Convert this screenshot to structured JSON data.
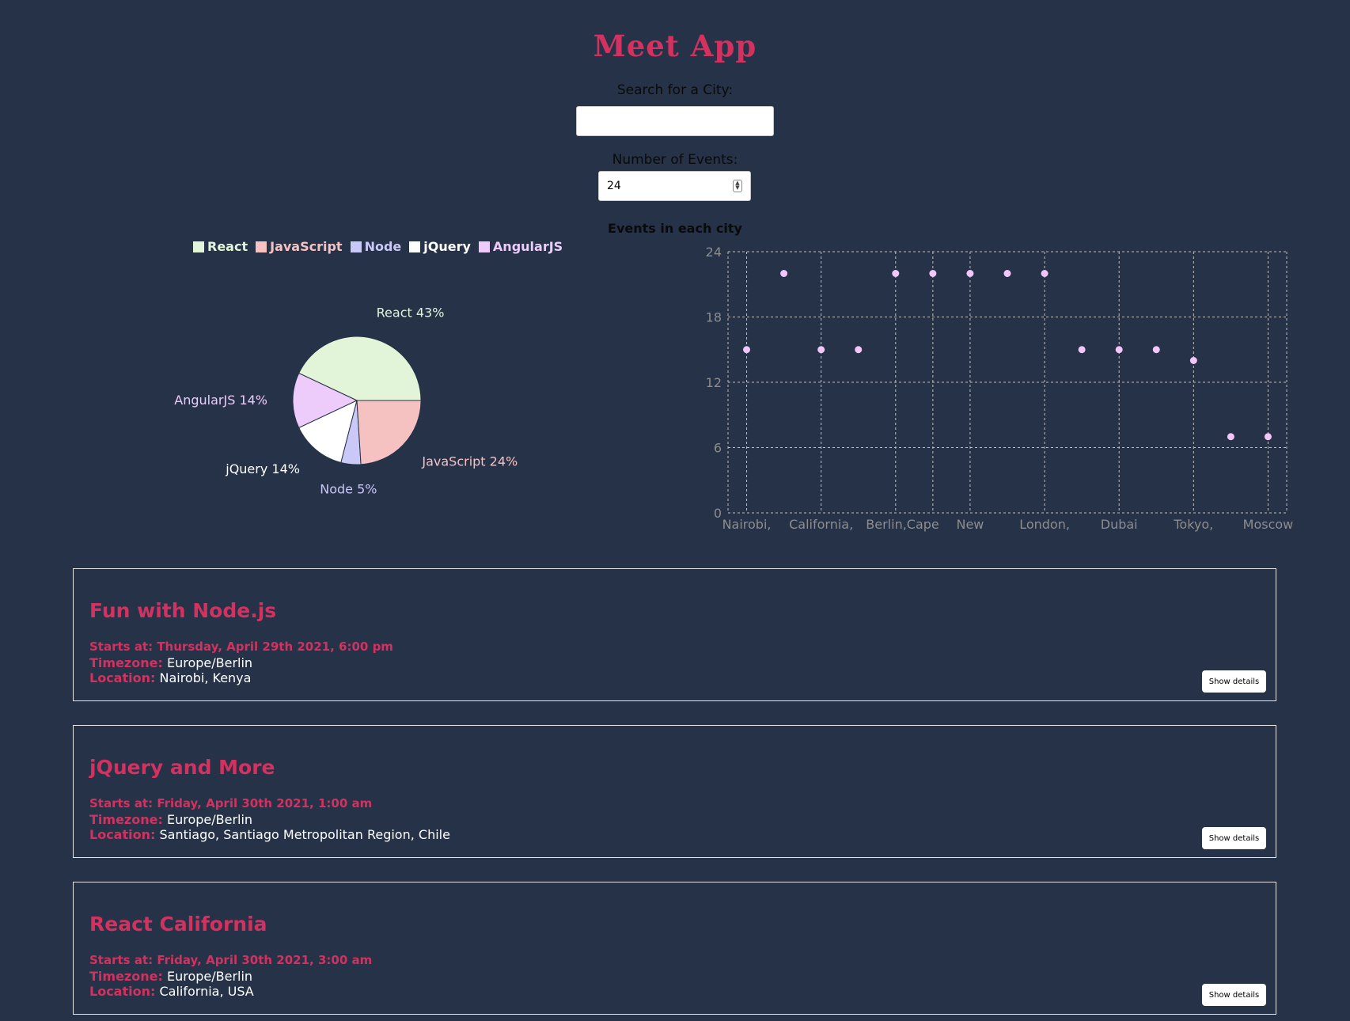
{
  "app": {
    "title": "Meet App"
  },
  "search": {
    "label": "Search for a City:",
    "value": ""
  },
  "number": {
    "label": "Number of Events:",
    "value": "24"
  },
  "chart_title": "Events in each city",
  "colors": {
    "accent": "#d3315f",
    "background": "#253247",
    "scatter_point": "#f3c6fb"
  },
  "chart_data": [
    {
      "type": "pie",
      "legend_position": "top",
      "slices": [
        {
          "name": "React",
          "value": 43,
          "label": "React 43%",
          "color": "#e2f5d8"
        },
        {
          "name": "AngularJS",
          "value": 14,
          "label": "AngularJS 14%",
          "color": "#edcbfb"
        },
        {
          "name": "jQuery",
          "value": 14,
          "label": "jQuery 14%",
          "color": "#ffffff"
        },
        {
          "name": "Node",
          "value": 5,
          "label": "Node 5%",
          "color": "#c9c8f6"
        },
        {
          "name": "JavaScript",
          "value": 24,
          "label": "JavaScript 24%",
          "color": "#f6c1c1"
        }
      ]
    },
    {
      "type": "scatter",
      "title": "Events in each city",
      "grid": true,
      "ylim": [
        0,
        24
      ],
      "yticks": [
        0,
        6,
        12,
        18,
        24
      ],
      "x_tick_labels": [
        "Nairobi,",
        "California,",
        "Berlin,",
        "Cape",
        "New",
        "London,",
        "Dubai",
        "Tokyo,",
        "Moscow"
      ],
      "points": [
        {
          "x": 0,
          "y": 15
        },
        {
          "x": 1,
          "y": 22
        },
        {
          "x": 2,
          "y": 15
        },
        {
          "x": 3,
          "y": 15
        },
        {
          "x": 4,
          "y": 22
        },
        {
          "x": 5,
          "y": 22
        },
        {
          "x": 6,
          "y": 22
        },
        {
          "x": 7,
          "y": 22
        },
        {
          "x": 8,
          "y": 22
        },
        {
          "x": 9,
          "y": 15
        },
        {
          "x": 10,
          "y": 15
        },
        {
          "x": 11,
          "y": 15
        },
        {
          "x": 12,
          "y": 14
        },
        {
          "x": 13,
          "y": 7
        },
        {
          "x": 14,
          "y": 7
        }
      ]
    }
  ],
  "events": [
    {
      "title": "Fun with Node.js",
      "start": "Starts at: Thursday, April 29th 2021, 6:00 pm",
      "timezone_label": "Timezone:",
      "timezone": "Europe/Berlin",
      "location_label": "Location:",
      "location": "Nairobi, Kenya",
      "button": "Show details"
    },
    {
      "title": "jQuery and More",
      "start": "Starts at: Friday, April 30th 2021, 1:00 am",
      "timezone_label": "Timezone:",
      "timezone": "Europe/Berlin",
      "location_label": "Location:",
      "location": "Santiago, Santiago Metropolitan Region, Chile",
      "button": "Show details"
    },
    {
      "title": "React California",
      "start": "Starts at: Friday, April 30th 2021, 3:00 am",
      "timezone_label": "Timezone:",
      "timezone": "Europe/Berlin",
      "location_label": "Location:",
      "location": "California, USA",
      "button": "Show details"
    }
  ]
}
